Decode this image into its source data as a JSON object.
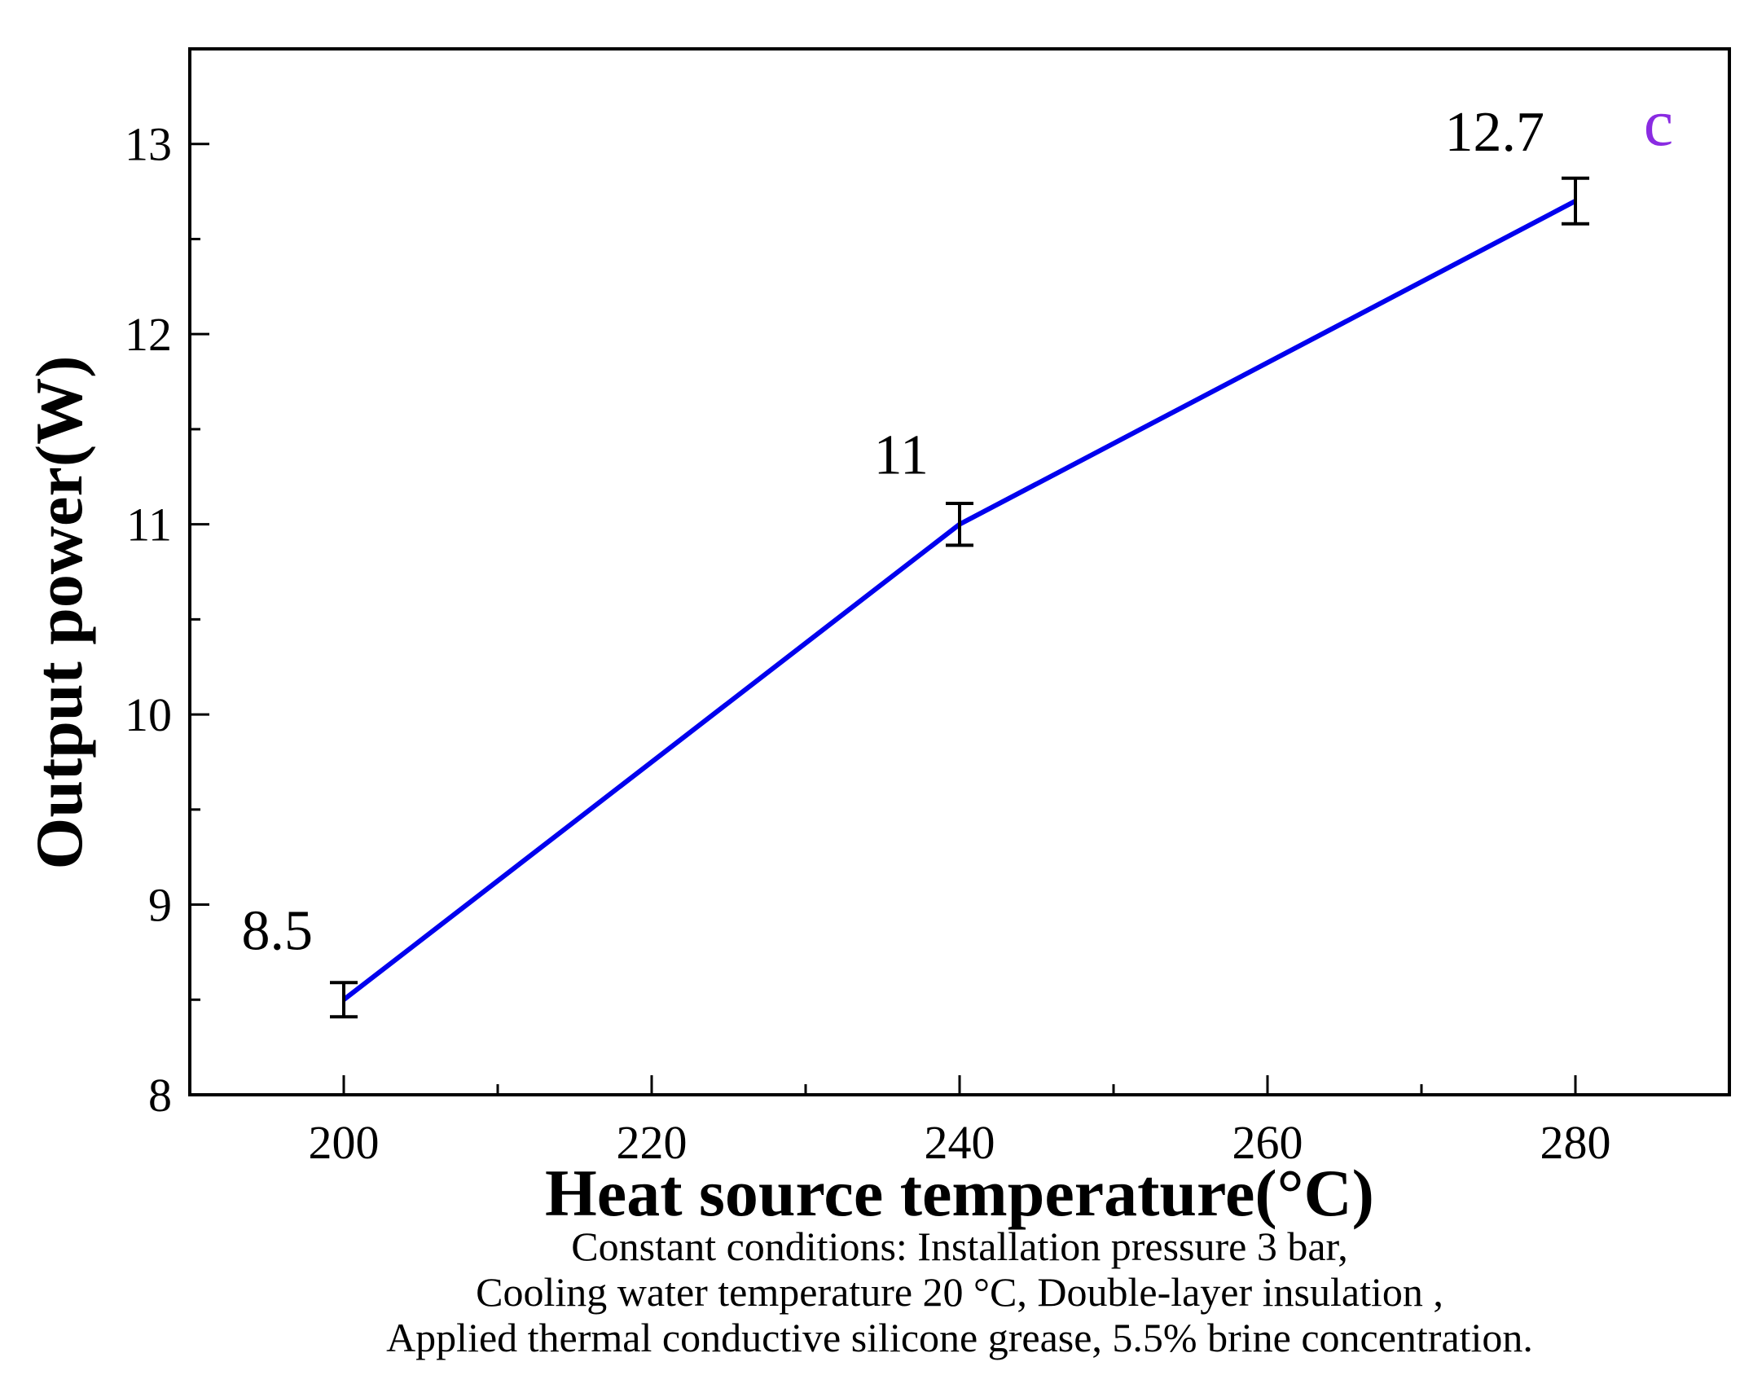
{
  "chart_data": {
    "type": "line",
    "panel_label": "c",
    "xlabel": "Heat source temperature(°C)",
    "ylabel": "Output power(W)",
    "x": [
      200,
      240,
      280
    ],
    "series": [
      {
        "values": [
          8.5,
          11.0,
          12.7
        ],
        "error": [
          0.09,
          0.11,
          0.12
        ],
        "color": "#0000ee",
        "data_labels": [
          "8.5",
          "11",
          "12.7"
        ]
      }
    ],
    "xlim": [
      190,
      290
    ],
    "ylim": [
      8,
      13.5
    ],
    "x_ticks": [
      200,
      220,
      240,
      260,
      280
    ],
    "x_tick_labels": [
      "200",
      "220",
      "240",
      "260",
      "280"
    ],
    "x_minor_ticks": [
      210,
      230,
      250,
      270
    ],
    "y_ticks": [
      8,
      9,
      10,
      11,
      12,
      13
    ],
    "y_tick_labels": [
      "8",
      "9",
      "10",
      "11",
      "12",
      "13"
    ],
    "y_minor_ticks": [
      8.5,
      9.5,
      10.5,
      11.5,
      12.5
    ],
    "grid": false,
    "panel_label_color": "#8a2be2",
    "caption": [
      "Constant conditions: Installation pressure 3 bar,",
      "Cooling water temperature 20 °C, Double-layer insulation ,",
      "Applied thermal conductive silicone grease, 5.5% brine concentration."
    ]
  }
}
